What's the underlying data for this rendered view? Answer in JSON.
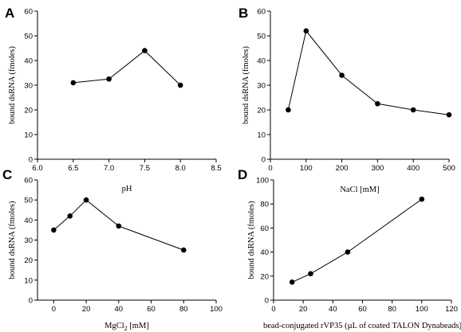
{
  "chart_data": [
    {
      "type": "line",
      "panel": "A",
      "xlabel": "pH",
      "ylabel": "bound dsRNA (fmoles)",
      "xlim": [
        6.0,
        8.5
      ],
      "ylim": [
        0,
        60
      ],
      "xticks": [
        "6.0",
        "6.5",
        "7.0",
        "7.5",
        "8.0",
        "8.5"
      ],
      "yticks": [
        "0",
        "10",
        "20",
        "30",
        "40",
        "50",
        "60"
      ],
      "x": [
        6.5,
        7.0,
        7.5,
        8.0
      ],
      "y": [
        31,
        32.5,
        44,
        30
      ]
    },
    {
      "type": "line",
      "panel": "B",
      "xlabel": "NaCl [mM]",
      "ylabel": "bound dsRNA (fmoles)",
      "xlim": [
        0,
        500
      ],
      "ylim": [
        0,
        60
      ],
      "xticks": [
        "0",
        "100",
        "200",
        "300",
        "400",
        "500"
      ],
      "yticks": [
        "0",
        "10",
        "20",
        "30",
        "40",
        "50",
        "60"
      ],
      "x": [
        50,
        100,
        200,
        300,
        400,
        500
      ],
      "y": [
        20,
        52,
        34,
        22.5,
        20,
        18
      ]
    },
    {
      "type": "line",
      "panel": "C",
      "xlabel": "MgCl",
      "xlabel_sub": "2",
      "xlabel_suffix": " [mM]",
      "ylabel": "bound dsRNA (fmoles)",
      "xlim": [
        -10,
        100
      ],
      "ylim": [
        0,
        60
      ],
      "xticks": [
        "0",
        "20",
        "40",
        "60",
        "80",
        "100"
      ],
      "yticks": [
        "0",
        "10",
        "20",
        "30",
        "40",
        "50",
        "60"
      ],
      "x": [
        0,
        10,
        20,
        40,
        80
      ],
      "y": [
        35,
        42,
        50,
        37,
        25
      ]
    },
    {
      "type": "line",
      "panel": "D",
      "xlabel": "bead-conjugated rVP35 (µL of coated TALON Dynabeads)",
      "ylabel": "bound dsRNA (fmoles)",
      "xlim": [
        0,
        120
      ],
      "ylim": [
        0,
        100
      ],
      "xticks": [
        "0",
        "20",
        "40",
        "60",
        "80",
        "100",
        "120"
      ],
      "yticks": [
        "0",
        "20",
        "40",
        "60",
        "80",
        "100"
      ],
      "x": [
        12.5,
        25,
        50,
        100
      ],
      "y": [
        15,
        22,
        40,
        84
      ]
    }
  ]
}
